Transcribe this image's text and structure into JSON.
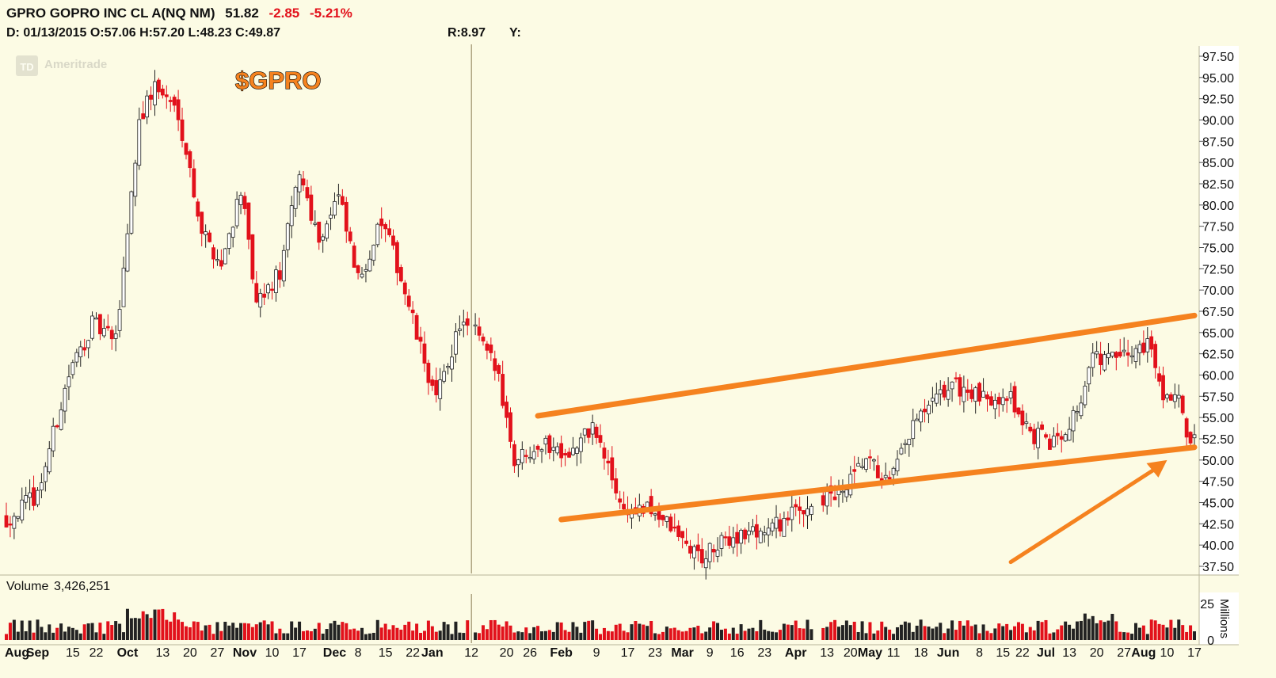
{
  "header": {
    "symbol_desc": "GPRO GOPRO INC CL A(NQ NM)",
    "last": "51.82",
    "change": "-2.85",
    "change_pct": "-5.21%",
    "date_line": "D: 01/13/2015 O:57.06 H:57.20 L:48.23 C:49.87",
    "r_label": "R:8.97",
    "y_label": "Y:"
  },
  "watermark": "Ameritrade",
  "watermark_badge": "TD",
  "ticker_label": "$GPRO",
  "volume_label": "Volume",
  "volume_value": "3,426,251",
  "colors": {
    "up": "#ffffff",
    "down": "#e2111b",
    "trend": "#f5821f",
    "background": "#fcfbe4",
    "panel": "#ffffff"
  },
  "chart_data": {
    "type": "candlestick",
    "price_ticks": [
      "97.50",
      "95.00",
      "92.50",
      "90.00",
      "87.50",
      "85.00",
      "82.50",
      "80.00",
      "77.50",
      "75.00",
      "72.50",
      "70.00",
      "67.50",
      "65.00",
      "62.50",
      "60.00",
      "57.50",
      "55.00",
      "52.50",
      "50.00",
      "47.50",
      "45.00",
      "42.50",
      "40.00",
      "37.50"
    ],
    "ylim": [
      36,
      98.5
    ],
    "volume_ticks": [
      "25",
      "0"
    ],
    "volume_axis_label": "Millions",
    "x_labels": [
      "Aug",
      "Sep",
      "15",
      "22",
      "Oct",
      "13",
      "20",
      "27",
      "Nov",
      "10",
      "17",
      "Dec",
      "8",
      "15",
      "22",
      "Jan",
      "12",
      "20",
      "26",
      "Feb",
      "9",
      "17",
      "23",
      "Mar",
      "9",
      "16",
      "23",
      "Apr",
      "13",
      "20",
      "May",
      "11",
      "18",
      "Jun",
      "8",
      "15",
      "22",
      "Jul",
      "13",
      "20",
      "27",
      "Aug",
      "10",
      "17"
    ],
    "close_anchors": [
      [
        0,
        43.0
      ],
      [
        8,
        46.0
      ],
      [
        16,
        60.0
      ],
      [
        22,
        66.0
      ],
      [
        28,
        64.0
      ],
      [
        34,
        90.0
      ],
      [
        38,
        94.0
      ],
      [
        44,
        91.0
      ],
      [
        50,
        77.0
      ],
      [
        55,
        73.0
      ],
      [
        60,
        82.0
      ],
      [
        64,
        68.0
      ],
      [
        70,
        72.0
      ],
      [
        75,
        84.0
      ],
      [
        80,
        76.0
      ],
      [
        85,
        81.0
      ],
      [
        90,
        71.0
      ],
      [
        96,
        78.0
      ],
      [
        100,
        73.0
      ],
      [
        106,
        63.0
      ],
      [
        110,
        57.0
      ],
      [
        116,
        66.0
      ],
      [
        120,
        65.0
      ],
      [
        126,
        60.0
      ],
      [
        130,
        50.0
      ],
      [
        136,
        52.0
      ],
      [
        145,
        51.0
      ],
      [
        150,
        54.0
      ],
      [
        158,
        44.0
      ],
      [
        166,
        44.0
      ],
      [
        174,
        40.0
      ],
      [
        178,
        38.5
      ],
      [
        186,
        41.0
      ],
      [
        196,
        42.0
      ],
      [
        206,
        45.0
      ],
      [
        214,
        46.0
      ],
      [
        220,
        50.0
      ],
      [
        226,
        47.0
      ],
      [
        232,
        54.0
      ],
      [
        242,
        59.0
      ],
      [
        250,
        57.0
      ],
      [
        256,
        58.0
      ],
      [
        262,
        53.0
      ],
      [
        268,
        52.0
      ],
      [
        274,
        56.0
      ],
      [
        278,
        62.0
      ],
      [
        286,
        62.0
      ],
      [
        292,
        64.0
      ],
      [
        296,
        58.0
      ],
      [
        300,
        57.5
      ],
      [
        302,
        52.0
      ]
    ]
  },
  "annotations": {
    "upper_trend": {
      "from": [
        136,
        55.2
      ],
      "to": [
        304,
        67.0
      ]
    },
    "lower_trend": {
      "from": [
        142,
        43.0
      ],
      "to": [
        304,
        51.5
      ]
    },
    "arrow": {
      "from": [
        257,
        38.0
      ],
      "to": [
        297,
        50.0
      ]
    },
    "date_marker_bar": 119
  }
}
